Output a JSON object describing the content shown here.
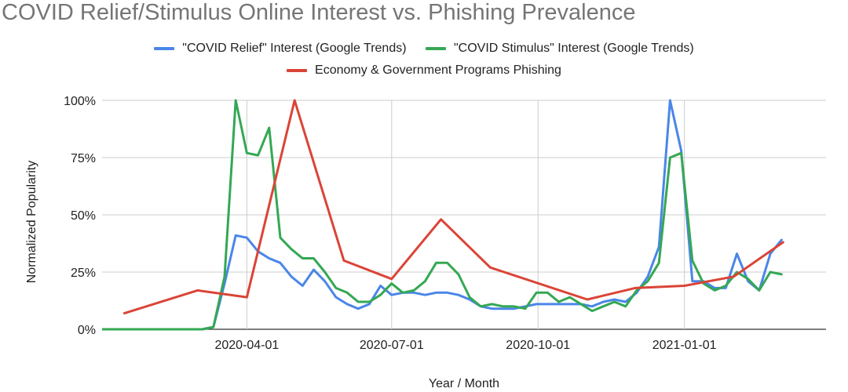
{
  "chart_data": {
    "type": "line",
    "title": "COVID Relief/Stimulus Online Interest vs. Phishing Prevalence",
    "xlabel": "Year / Month",
    "ylabel": "Normalized Popularity",
    "x_range": [
      "2020-01-01",
      "2021-03-31"
    ],
    "x_ticks": [
      "2020-04-01",
      "2020-07-01",
      "2020-10-01",
      "2021-01-01"
    ],
    "y_ticks": [
      "0%",
      "25%",
      "50%",
      "75%",
      "100%"
    ],
    "ylim": [
      0,
      100
    ],
    "grid": true,
    "legend_position": "top",
    "series": [
      {
        "name": "\"COVID Relief\" Interest (Google Trends)",
        "color": "#4a86e8",
        "points": [
          [
            "2020-01-01",
            0
          ],
          [
            "2020-01-08",
            0
          ],
          [
            "2020-01-15",
            0
          ],
          [
            "2020-01-22",
            0
          ],
          [
            "2020-01-29",
            0
          ],
          [
            "2020-02-05",
            0
          ],
          [
            "2020-02-12",
            0
          ],
          [
            "2020-02-19",
            0
          ],
          [
            "2020-02-26",
            0
          ],
          [
            "2020-03-04",
            0
          ],
          [
            "2020-03-11",
            1
          ],
          [
            "2020-03-18",
            20
          ],
          [
            "2020-03-25",
            41
          ],
          [
            "2020-04-01",
            40
          ],
          [
            "2020-04-08",
            34
          ],
          [
            "2020-04-15",
            31
          ],
          [
            "2020-04-22",
            29
          ],
          [
            "2020-04-29",
            23
          ],
          [
            "2020-05-06",
            19
          ],
          [
            "2020-05-13",
            26
          ],
          [
            "2020-05-20",
            21
          ],
          [
            "2020-05-27",
            14
          ],
          [
            "2020-06-03",
            11
          ],
          [
            "2020-06-10",
            9
          ],
          [
            "2020-06-17",
            11
          ],
          [
            "2020-06-24",
            19
          ],
          [
            "2020-07-01",
            15
          ],
          [
            "2020-07-08",
            16
          ],
          [
            "2020-07-15",
            16
          ],
          [
            "2020-07-22",
            15
          ],
          [
            "2020-07-29",
            16
          ],
          [
            "2020-08-05",
            16
          ],
          [
            "2020-08-12",
            15
          ],
          [
            "2020-08-19",
            13
          ],
          [
            "2020-08-26",
            10
          ],
          [
            "2020-09-02",
            9
          ],
          [
            "2020-09-09",
            9
          ],
          [
            "2020-09-16",
            9
          ],
          [
            "2020-09-23",
            10
          ],
          [
            "2020-09-30",
            11
          ],
          [
            "2020-10-07",
            11
          ],
          [
            "2020-10-14",
            11
          ],
          [
            "2020-10-21",
            11
          ],
          [
            "2020-10-28",
            11
          ],
          [
            "2020-11-04",
            10
          ],
          [
            "2020-11-11",
            12
          ],
          [
            "2020-11-18",
            13
          ],
          [
            "2020-11-25",
            12
          ],
          [
            "2020-12-02",
            16
          ],
          [
            "2020-12-09",
            23
          ],
          [
            "2020-12-16",
            36
          ],
          [
            "2020-12-23",
            100
          ],
          [
            "2020-12-30",
            78
          ],
          [
            "2021-01-06",
            21
          ],
          [
            "2021-01-13",
            21
          ],
          [
            "2021-01-20",
            18
          ],
          [
            "2021-01-27",
            18
          ],
          [
            "2021-02-03",
            33
          ],
          [
            "2021-02-10",
            21
          ],
          [
            "2021-02-17",
            17
          ],
          [
            "2021-02-24",
            33
          ],
          [
            "2021-03-03",
            39
          ]
        ]
      },
      {
        "name": "\"COVID Stimulus\" Interest (Google Trends)",
        "color": "#34a853",
        "points": [
          [
            "2020-01-01",
            0
          ],
          [
            "2020-01-08",
            0
          ],
          [
            "2020-01-15",
            0
          ],
          [
            "2020-01-22",
            0
          ],
          [
            "2020-01-29",
            0
          ],
          [
            "2020-02-05",
            0
          ],
          [
            "2020-02-12",
            0
          ],
          [
            "2020-02-19",
            0
          ],
          [
            "2020-02-26",
            0
          ],
          [
            "2020-03-04",
            0
          ],
          [
            "2020-03-11",
            1
          ],
          [
            "2020-03-18",
            23
          ],
          [
            "2020-03-25",
            100
          ],
          [
            "2020-04-01",
            77
          ],
          [
            "2020-04-08",
            76
          ],
          [
            "2020-04-15",
            88
          ],
          [
            "2020-04-22",
            40
          ],
          [
            "2020-04-29",
            35
          ],
          [
            "2020-05-06",
            31
          ],
          [
            "2020-05-13",
            31
          ],
          [
            "2020-05-20",
            25
          ],
          [
            "2020-05-27",
            18
          ],
          [
            "2020-06-03",
            16
          ],
          [
            "2020-06-10",
            12
          ],
          [
            "2020-06-17",
            12
          ],
          [
            "2020-06-24",
            15
          ],
          [
            "2020-07-01",
            20
          ],
          [
            "2020-07-08",
            16
          ],
          [
            "2020-07-15",
            17
          ],
          [
            "2020-07-22",
            21
          ],
          [
            "2020-07-29",
            29
          ],
          [
            "2020-08-05",
            29
          ],
          [
            "2020-08-12",
            24
          ],
          [
            "2020-08-19",
            14
          ],
          [
            "2020-08-26",
            10
          ],
          [
            "2020-09-02",
            11
          ],
          [
            "2020-09-09",
            10
          ],
          [
            "2020-09-16",
            10
          ],
          [
            "2020-09-23",
            9
          ],
          [
            "2020-09-30",
            16
          ],
          [
            "2020-10-07",
            16
          ],
          [
            "2020-10-14",
            12
          ],
          [
            "2020-10-21",
            14
          ],
          [
            "2020-10-28",
            11
          ],
          [
            "2020-11-04",
            8
          ],
          [
            "2020-11-11",
            10
          ],
          [
            "2020-11-18",
            12
          ],
          [
            "2020-11-25",
            10
          ],
          [
            "2020-12-02",
            17
          ],
          [
            "2020-12-09",
            21
          ],
          [
            "2020-12-16",
            29
          ],
          [
            "2020-12-23",
            75
          ],
          [
            "2020-12-30",
            77
          ],
          [
            "2021-01-06",
            30
          ],
          [
            "2021-01-13",
            20
          ],
          [
            "2021-01-20",
            17
          ],
          [
            "2021-01-27",
            19
          ],
          [
            "2021-02-03",
            25
          ],
          [
            "2021-02-10",
            22
          ],
          [
            "2021-02-17",
            17
          ],
          [
            "2021-02-24",
            25
          ],
          [
            "2021-03-03",
            24
          ]
        ]
      },
      {
        "name": "Economy & Government Programs Phishing",
        "color": "#db4437",
        "points": [
          [
            "2020-01-15",
            7
          ],
          [
            "2020-03-01",
            17
          ],
          [
            "2020-04-01",
            14
          ],
          [
            "2020-05-01",
            100
          ],
          [
            "2020-06-01",
            30
          ],
          [
            "2020-07-01",
            22
          ],
          [
            "2020-08-01",
            48
          ],
          [
            "2020-09-01",
            27
          ],
          [
            "2020-11-01",
            13
          ],
          [
            "2020-12-01",
            18
          ],
          [
            "2021-01-01",
            19
          ],
          [
            "2021-02-01",
            23
          ],
          [
            "2021-03-04",
            38
          ]
        ]
      }
    ]
  }
}
